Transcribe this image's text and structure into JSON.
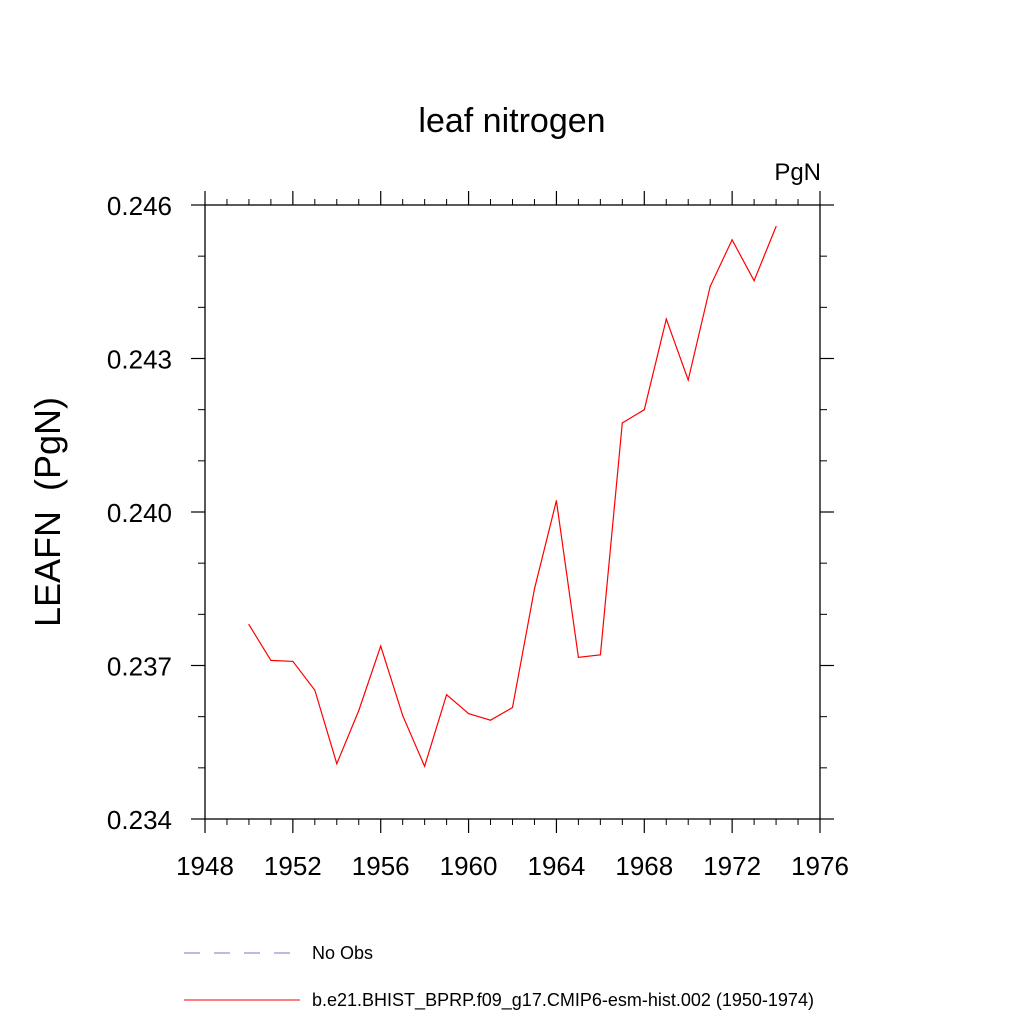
{
  "chart_data": {
    "type": "line",
    "title": "leaf nitrogen",
    "units_label": "PgN",
    "ylabel": "LEAFN  (PgN)",
    "xlabel": "",
    "xlim": [
      1948,
      1976
    ],
    "ylim": [
      0.234,
      0.246
    ],
    "x_ticks": [
      1948,
      1952,
      1956,
      1960,
      1964,
      1968,
      1972,
      1976
    ],
    "x_tick_labels": [
      "1948",
      "1952",
      "1956",
      "1960",
      "1964",
      "1968",
      "1972",
      "1976"
    ],
    "y_ticks": [
      0.234,
      0.237,
      0.24,
      0.243,
      0.246
    ],
    "y_tick_labels": [
      "0.234",
      "0.237",
      "0.240",
      "0.243",
      "0.246"
    ],
    "grid": false,
    "legend_position": "bottom",
    "series": [
      {
        "name": "b.e21.BHIST_BPRP.f09_g17.CMIP6-esm-hist.002 (1950-1974)",
        "color": "#ff0000",
        "style": "solid",
        "x": [
          1950,
          1951,
          1952,
          1953,
          1954,
          1955,
          1956,
          1957,
          1958,
          1959,
          1960,
          1961,
          1962,
          1963,
          1964,
          1965,
          1966,
          1967,
          1968,
          1969,
          1970,
          1971,
          1972,
          1973,
          1974
        ],
        "values": [
          0.2378,
          0.2371,
          0.23708,
          0.23652,
          0.23508,
          0.23612,
          0.23738,
          0.23602,
          0.23503,
          0.23643,
          0.23606,
          0.23593,
          0.23618,
          0.2385,
          0.24022,
          0.23716,
          0.23721,
          0.24174,
          0.242,
          0.24377,
          0.24258,
          0.24441,
          0.24532,
          0.24452,
          0.24558
        ]
      }
    ],
    "legend": [
      {
        "label": "No Obs",
        "color": "#7b74c9",
        "style": "dashed"
      },
      {
        "label": "b.e21.BHIST_BPRP.f09_g17.CMIP6-esm-hist.002 (1950-1974)",
        "color": "#ff0000",
        "style": "solid"
      }
    ]
  }
}
